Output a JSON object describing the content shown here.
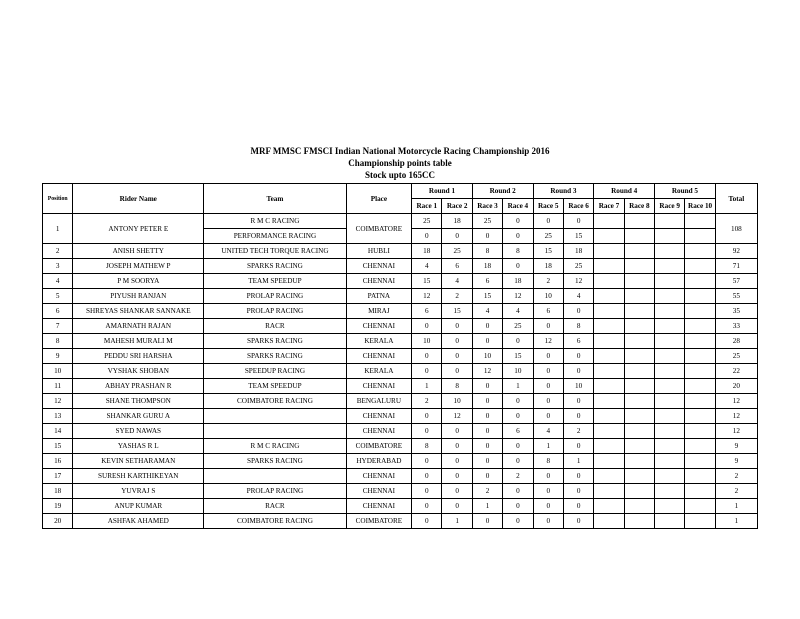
{
  "header": {
    "title1": "MRF MMSC FMSCI Indian National Motorcycle Racing Championship 2016",
    "title2": "Championship points table",
    "title3": "Stock upto 165CC"
  },
  "columns": {
    "position": "Position",
    "rider": "Rider Name",
    "team": "Team",
    "place": "Place",
    "rounds": [
      "Round 1",
      "Round 2",
      "Round 3",
      "Round 4",
      "Round 5"
    ],
    "races": [
      "Race 1",
      "Race 2",
      "Race 3",
      "Race 4",
      "Race 5",
      "Race 6",
      "Race 7",
      "Race 8",
      "Race 9",
      "Race 10"
    ],
    "total": "Total"
  },
  "rows": [
    {
      "pos": "1",
      "name": "ANTONY PETER E",
      "teams": [
        "R M C RACING",
        "PERFORMANCE RACING"
      ],
      "place": "COIMBATORE",
      "r": [
        "25",
        "18",
        "25",
        "0",
        "0",
        "0",
        "",
        "",
        "",
        ""
      ],
      "r2": [
        "0",
        "0",
        "0",
        "0",
        "25",
        "15",
        "",
        "",
        "",
        ""
      ],
      "total": "108"
    },
    {
      "pos": "2",
      "name": "ANISH SHETTY",
      "team": "UNITED TECH TORQUE RACING",
      "place": "HUBLI",
      "r": [
        "18",
        "25",
        "8",
        "8",
        "15",
        "18",
        "",
        "",
        "",
        ""
      ],
      "total": "92"
    },
    {
      "pos": "3",
      "name": "JOSEPH MATHEW P",
      "team": "SPARKS RACING",
      "place": "CHENNAI",
      "r": [
        "4",
        "6",
        "18",
        "0",
        "18",
        "25",
        "",
        "",
        "",
        ""
      ],
      "total": "71"
    },
    {
      "pos": "4",
      "name": "P M SOORYA",
      "team": "TEAM SPEEDUP",
      "place": "CHENNAI",
      "r": [
        "15",
        "4",
        "6",
        "18",
        "2",
        "12",
        "",
        "",
        "",
        ""
      ],
      "total": "57"
    },
    {
      "pos": "5",
      "name": "PIYUSH RANJAN",
      "team": "PROLAP RACING",
      "place": "PATNA",
      "r": [
        "12",
        "2",
        "15",
        "12",
        "10",
        "4",
        "",
        "",
        "",
        ""
      ],
      "total": "55"
    },
    {
      "pos": "6",
      "name": "SHREYAS SHANKAR  SANNAKE",
      "team": "PROLAP RACING",
      "place": "MIRAJ",
      "r": [
        "6",
        "15",
        "4",
        "4",
        "6",
        "0",
        "",
        "",
        "",
        ""
      ],
      "total": "35"
    },
    {
      "pos": "7",
      "name": "AMARNATH RAJAN",
      "team": "RACR",
      "place": "CHENNAI",
      "r": [
        "0",
        "0",
        "0",
        "25",
        "0",
        "8",
        "",
        "",
        "",
        ""
      ],
      "total": "33"
    },
    {
      "pos": "8",
      "name": "MAHESH MURALI M",
      "team": "SPARKS RACING",
      "place": "KERALA",
      "r": [
        "10",
        "0",
        "0",
        "0",
        "12",
        "6",
        "",
        "",
        "",
        ""
      ],
      "total": "28"
    },
    {
      "pos": "9",
      "name": "PEDDU SRI HARSHA",
      "team": "SPARKS RACING",
      "place": "CHENNAI",
      "r": [
        "0",
        "0",
        "10",
        "15",
        "0",
        "0",
        "",
        "",
        "",
        ""
      ],
      "total": "25"
    },
    {
      "pos": "10",
      "name": "VYSHAK SHOBAN",
      "team": "SPEEDUP RACING",
      "place": "KERALA",
      "r": [
        "0",
        "0",
        "12",
        "10",
        "0",
        "0",
        "",
        "",
        "",
        ""
      ],
      "total": "22"
    },
    {
      "pos": "11",
      "name": "ABHAY PRASHAN R",
      "team": "TEAM SPEEDUP",
      "place": "CHENNAI",
      "r": [
        "1",
        "8",
        "0",
        "1",
        "0",
        "10",
        "",
        "",
        "",
        ""
      ],
      "total": "20"
    },
    {
      "pos": "12",
      "name": "SHANE THOMPSON",
      "team": "COIMBATORE RACING",
      "place": "BENGALURU",
      "r": [
        "2",
        "10",
        "0",
        "0",
        "0",
        "0",
        "",
        "",
        "",
        ""
      ],
      "total": "12"
    },
    {
      "pos": "13",
      "name": "SHANKAR GURU A",
      "team": "",
      "place": "CHENNAI",
      "r": [
        "0",
        "12",
        "0",
        "0",
        "0",
        "0",
        "",
        "",
        "",
        ""
      ],
      "total": "12"
    },
    {
      "pos": "14",
      "name": "SYED NAWAS",
      "team": "",
      "place": "CHENNAI",
      "r": [
        "0",
        "0",
        "0",
        "6",
        "4",
        "2",
        "",
        "",
        "",
        ""
      ],
      "total": "12"
    },
    {
      "pos": "15",
      "name": "YASHAS R L",
      "team": "R M C RACING",
      "place": "COIMBATORE",
      "r": [
        "8",
        "0",
        "0",
        "0",
        "1",
        "0",
        "",
        "",
        "",
        ""
      ],
      "total": "9"
    },
    {
      "pos": "16",
      "name": "KEVIN SETHARAMAN",
      "team": "SPARKS RACING",
      "place": "HYDERABAD",
      "r": [
        "0",
        "0",
        "0",
        "0",
        "8",
        "1",
        "",
        "",
        "",
        ""
      ],
      "total": "9"
    },
    {
      "pos": "17",
      "name": "SURESH KARTHIKEYAN",
      "team": "",
      "place": "CHENNAI",
      "r": [
        "0",
        "0",
        "0",
        "2",
        "0",
        "0",
        "",
        "",
        "",
        ""
      ],
      "total": "2"
    },
    {
      "pos": "18",
      "name": "YUVRAJ S",
      "team": "PROLAP RACING",
      "place": "CHENNAI",
      "r": [
        "0",
        "0",
        "2",
        "0",
        "0",
        "0",
        "",
        "",
        "",
        ""
      ],
      "total": "2"
    },
    {
      "pos": "19",
      "name": "ANUP KUMAR",
      "team": "RACR",
      "place": "CHENNAI",
      "r": [
        "0",
        "0",
        "1",
        "0",
        "0",
        "0",
        "",
        "",
        "",
        ""
      ],
      "total": "1"
    },
    {
      "pos": "20",
      "name": "ASHFAK AHAMED",
      "team": "COIMBATORE RACING",
      "place": "COIMBATORE",
      "r": [
        "0",
        "1",
        "0",
        "0",
        "0",
        "0",
        "",
        "",
        "",
        ""
      ],
      "total": "1"
    }
  ],
  "style": {
    "background": "#ffffff",
    "border_color": "#000000",
    "font": "Times New Roman",
    "title_fontsize": 9,
    "body_fontsize": 7.2
  }
}
